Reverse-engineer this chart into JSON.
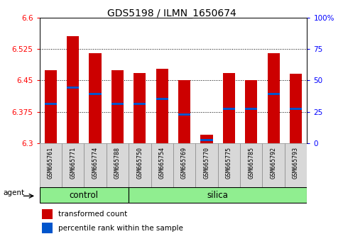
{
  "title": "GDS5198 / ILMN_1650674",
  "samples": [
    "GSM665761",
    "GSM665771",
    "GSM665774",
    "GSM665788",
    "GSM665750",
    "GSM665754",
    "GSM665769",
    "GSM665770",
    "GSM665775",
    "GSM665785",
    "GSM665792",
    "GSM665793"
  ],
  "bar_tops": [
    6.475,
    6.555,
    6.515,
    6.475,
    6.468,
    6.478,
    6.45,
    6.32,
    6.468,
    6.45,
    6.515,
    6.465
  ],
  "bar_bottom": 6.3,
  "blue_values": [
    6.393,
    6.432,
    6.418,
    6.393,
    6.393,
    6.405,
    6.368,
    6.308,
    6.382,
    6.382,
    6.418,
    6.382
  ],
  "ylim": [
    6.3,
    6.6
  ],
  "yticks_left": [
    6.3,
    6.375,
    6.45,
    6.525,
    6.6
  ],
  "yticks_right": [
    0,
    25,
    50,
    75,
    100
  ],
  "ytick_labels_right": [
    "0",
    "25",
    "50",
    "75",
    "100%"
  ],
  "bar_color": "#cc0000",
  "blue_color": "#0055cc",
  "bar_width": 0.55,
  "green_color": "#90ee90",
  "title_fontsize": 10,
  "agent_label": "agent",
  "control_label": "control",
  "silica_label": "silica",
  "legend_items": [
    "transformed count",
    "percentile rank within the sample"
  ],
  "n_control": 4,
  "n_silica": 8
}
